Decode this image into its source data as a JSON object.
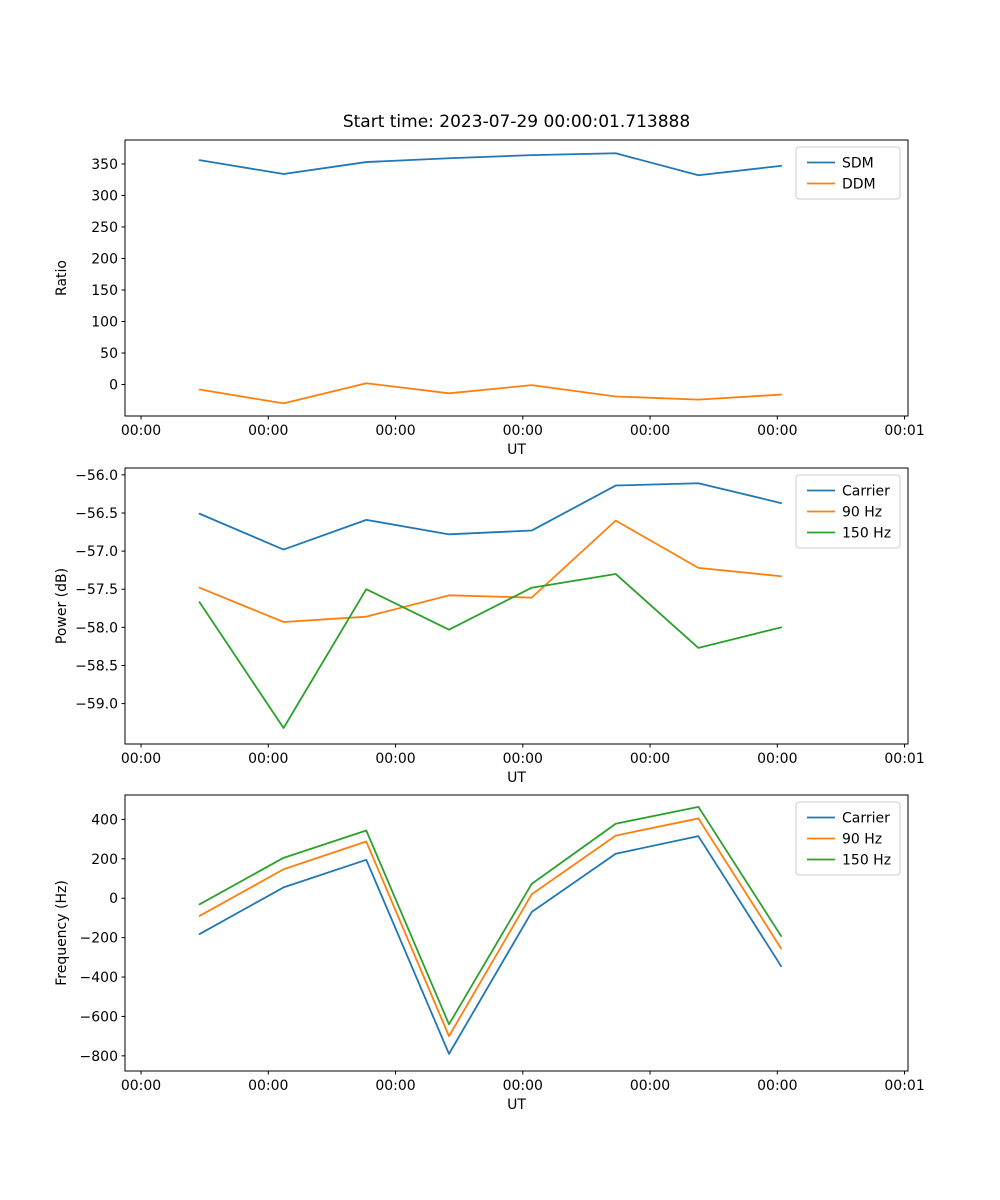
{
  "title": "Start time: 2023-07-29 00:00:01.713888",
  "chart_data": [
    {
      "type": "line",
      "name": "ratio-plot",
      "xlabel": "UT",
      "ylabel": "Ratio",
      "x_seconds": [
        4.6,
        11.2,
        17.7,
        24.2,
        30.7,
        37.3,
        43.8,
        50.3
      ],
      "series": [
        {
          "name": "SDM",
          "color": "#1f77b4",
          "values": [
            356,
            334,
            353,
            359,
            364,
            367,
            332,
            347
          ]
        },
        {
          "name": "DDM",
          "color": "#ff7f0e",
          "values": [
            -8,
            -30,
            2,
            -14,
            -1,
            -19,
            -24,
            -16
          ]
        }
      ],
      "xlim": [
        -1.26,
        60.27
      ],
      "ylim": [
        -50,
        388
      ],
      "yticks": [
        0,
        50,
        100,
        150,
        200,
        250,
        300,
        350
      ],
      "ytick_labels": [
        "0",
        "50",
        "100",
        "150",
        "200",
        "250",
        "300",
        "350"
      ],
      "xticks": [
        0,
        10,
        20,
        30,
        40,
        50,
        60
      ],
      "xtick_labels": [
        "00:00",
        "00:00",
        "00:00",
        "00:00",
        "00:00",
        "00:00",
        "00:01"
      ],
      "legend_loc": "upper right",
      "grid": false
    },
    {
      "type": "line",
      "name": "power-plot",
      "xlabel": "UT",
      "ylabel": "Power (dB)",
      "x_seconds": [
        4.6,
        11.2,
        17.7,
        24.2,
        30.7,
        37.3,
        43.8,
        50.3
      ],
      "series": [
        {
          "name": "Carrier",
          "color": "#1f77b4",
          "values": [
            -56.51,
            -56.98,
            -56.59,
            -56.78,
            -56.73,
            -56.14,
            -56.11,
            -56.37
          ]
        },
        {
          "name": "90 Hz",
          "color": "#ff7f0e",
          "values": [
            -57.48,
            -57.93,
            -57.86,
            -57.58,
            -57.61,
            -56.6,
            -57.22,
            -57.33
          ]
        },
        {
          "name": "150 Hz",
          "color": "#2ca02c",
          "values": [
            -57.67,
            -59.32,
            -57.5,
            -58.03,
            -57.48,
            -57.3,
            -58.27,
            -58.0
          ]
        }
      ],
      "xlim": [
        -1.26,
        60.27
      ],
      "ylim": [
        -59.53,
        -55.91
      ],
      "yticks": [
        -59.0,
        -58.5,
        -58.0,
        -57.5,
        -57.0,
        -56.5,
        -56.0
      ],
      "ytick_labels": [
        "−59.0",
        "−58.5",
        "−58.0",
        "−57.5",
        "−57.0",
        "−56.5",
        "−56.0"
      ],
      "xticks": [
        0,
        10,
        20,
        30,
        40,
        50,
        60
      ],
      "xtick_labels": [
        "00:00",
        "00:00",
        "00:00",
        "00:00",
        "00:00",
        "00:00",
        "00:01"
      ],
      "legend_loc": "upper right",
      "grid": false
    },
    {
      "type": "line",
      "name": "frequency-plot",
      "xlabel": "UT",
      "ylabel": "Frequency (Hz)",
      "x_seconds": [
        4.6,
        11.2,
        17.7,
        24.2,
        30.7,
        37.3,
        43.8,
        50.3
      ],
      "series": [
        {
          "name": "Carrier",
          "color": "#1f77b4",
          "values": [
            -182,
            55,
            195,
            -790,
            -70,
            226,
            315,
            -345
          ]
        },
        {
          "name": "90 Hz",
          "color": "#ff7f0e",
          "values": [
            -90,
            147,
            288,
            -700,
            20,
            318,
            405,
            -255
          ]
        },
        {
          "name": "150 Hz",
          "color": "#2ca02c",
          "values": [
            -31,
            205,
            344,
            -640,
            73,
            378,
            464,
            -192
          ]
        }
      ],
      "xlim": [
        -1.26,
        60.27
      ],
      "ylim": [
        -877,
        524
      ],
      "yticks": [
        -800,
        -600,
        -400,
        -200,
        0,
        200,
        400
      ],
      "ytick_labels": [
        "−800",
        "−600",
        "−400",
        "−200",
        "0",
        "200",
        "400"
      ],
      "xticks": [
        0,
        10,
        20,
        30,
        40,
        50,
        60
      ],
      "xtick_labels": [
        "00:00",
        "00:00",
        "00:00",
        "00:00",
        "00:00",
        "00:00",
        "00:01"
      ],
      "legend_loc": "upper right",
      "grid": false
    }
  ]
}
